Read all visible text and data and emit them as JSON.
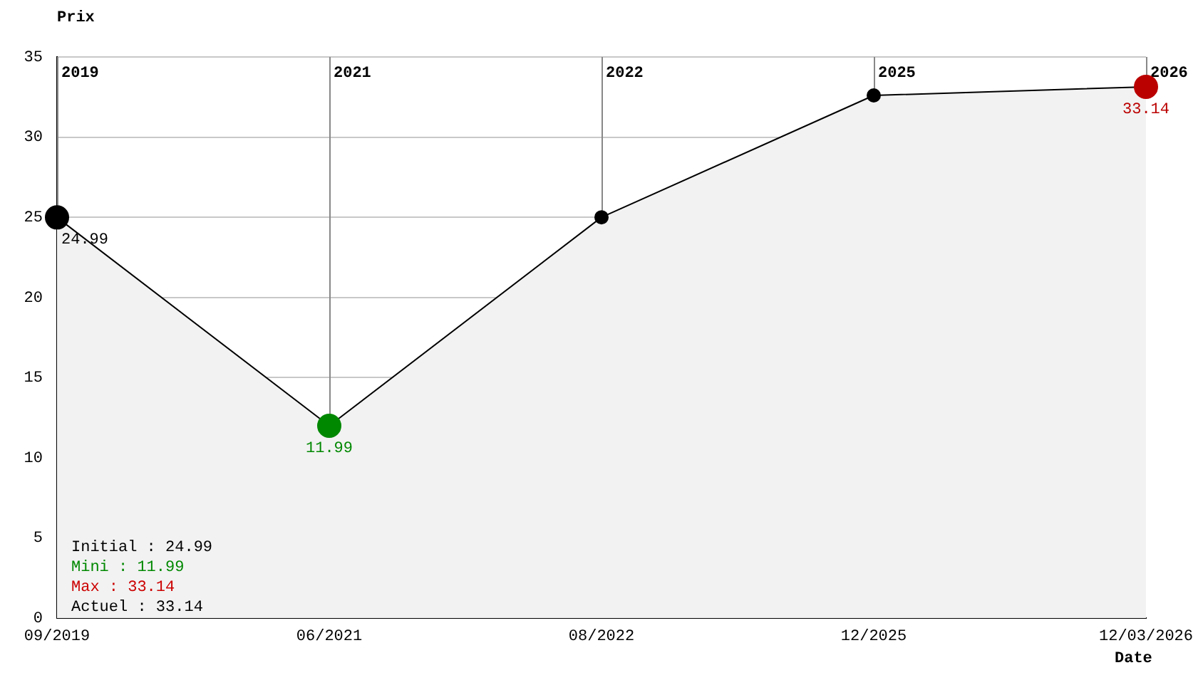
{
  "chart_data": {
    "type": "area",
    "xlabel": "Date",
    "ylabel": "Prix",
    "categories": [
      "09/2019",
      "06/2021",
      "08/2022",
      "12/2025",
      "12/03/2026"
    ],
    "series": [
      {
        "color": "#000000",
        "colors": [
          "#000000",
          "#008800",
          "#000000",
          "#000000",
          "#bb0000"
        ],
        "values": [
          24.99,
          11.99,
          25,
          32.6,
          33.14
        ],
        "value_labels": [
          "24.99",
          "11.99",
          null,
          null,
          "33.14"
        ]
      }
    ],
    "ylim": [
      0,
      35
    ],
    "yticks": [
      0,
      5,
      10,
      15,
      20,
      25,
      30,
      35
    ],
    "grid": "y",
    "legend": false,
    "marker": "circle",
    "ref_lines": [
      {
        "axis": "x",
        "value": "09/2019",
        "label": "2019",
        "color": "#888888"
      },
      {
        "axis": "x",
        "value": "06/2021",
        "label": "2021",
        "color": "#888888"
      },
      {
        "axis": "x",
        "value": "08/2022",
        "label": "2022",
        "color": "#888888"
      },
      {
        "axis": "x",
        "value": "12/2025",
        "label": "2025",
        "color": "#888888"
      },
      {
        "axis": "x",
        "value": "12/03/2026",
        "label": "2026",
        "color": "#888888"
      }
    ],
    "annotations": [
      "Initial : 24.99",
      "Mini : 11.99",
      "Max : 33.14",
      "Actuel : 33.14"
    ]
  }
}
